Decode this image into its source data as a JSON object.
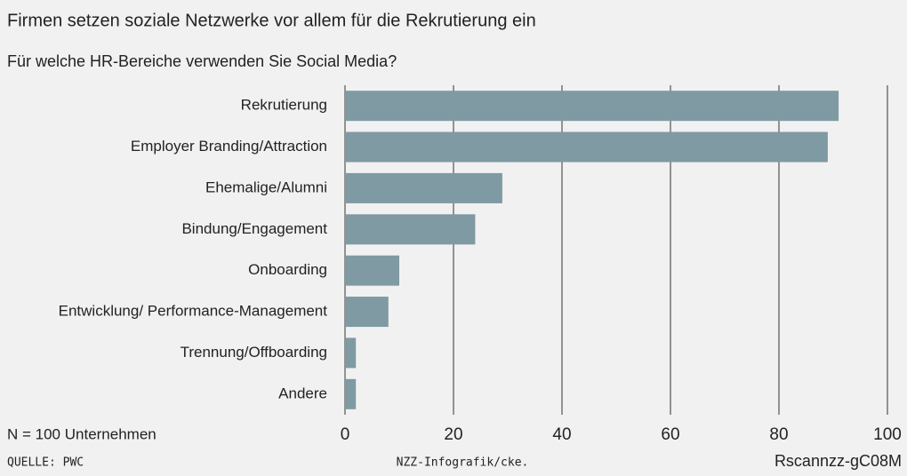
{
  "chart_data": {
    "type": "barh",
    "title": "Firmen setzen soziale Netzwerke vor allem für die Rekrutierung ein",
    "subtitle": "Für welche HR-Bereiche verwenden Sie Social Media?",
    "categories": [
      "Rekrutierung",
      "Employer Branding/Attraction",
      "Ehemalige/Alumni",
      "Bindung/Engagement",
      "Onboarding",
      "Entwicklung/ Performance-Management",
      "Trennung/Offboarding",
      "Andere"
    ],
    "values": [
      91,
      89,
      29,
      24,
      10,
      8,
      2,
      2
    ],
    "color": "#7f9aa3",
    "xlim": [
      0,
      100
    ],
    "xticks": [
      0,
      20,
      40,
      60,
      80,
      100
    ],
    "grid": true,
    "footnote": "N = 100 Unternehmen",
    "source": "QUELLE: PWC",
    "credit": "NZZ-Infografik/cke.",
    "code": "Rscannzz-gC08M"
  }
}
